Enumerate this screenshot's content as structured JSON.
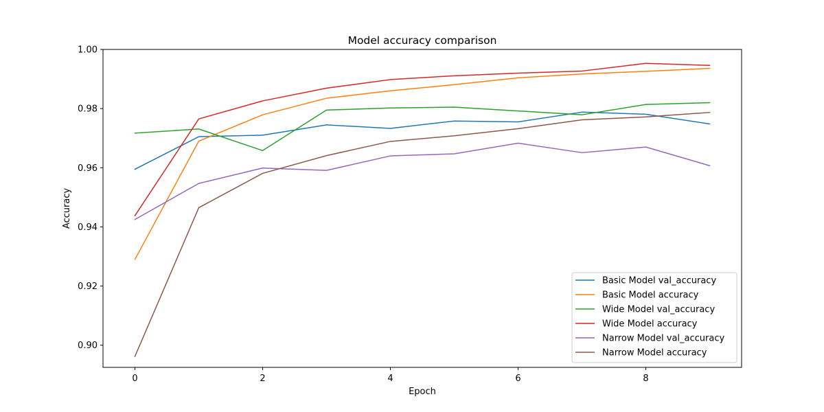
{
  "chart_data": {
    "type": "line",
    "title": "Model accuracy comparison",
    "xlabel": "Epoch",
    "ylabel": "Accuracy",
    "xlim": [
      -0.5,
      9.5
    ],
    "ylim": [
      0.8925,
      1.0
    ],
    "xticks": [
      0,
      2,
      4,
      6,
      8
    ],
    "xtick_labels": [
      "0",
      "2",
      "4",
      "6",
      "8"
    ],
    "yticks": [
      0.9,
      0.92,
      0.94,
      0.96,
      0.98,
      1.0
    ],
    "ytick_labels": [
      "0.90",
      "0.92",
      "0.94",
      "0.96",
      "0.98",
      "1.00"
    ],
    "grid": false,
    "legend_position": "lower-right",
    "x": [
      0,
      1,
      2,
      3,
      4,
      5,
      6,
      7,
      8,
      9
    ],
    "series": [
      {
        "name": "Basic Model val_accuracy",
        "color": "#1f77b4",
        "values": [
          0.9595,
          0.9705,
          0.971,
          0.9745,
          0.9733,
          0.9758,
          0.9755,
          0.9788,
          0.9781,
          0.9748
        ]
      },
      {
        "name": "Basic Model accuracy",
        "color": "#ff7f0e",
        "values": [
          0.929,
          0.969,
          0.9779,
          0.9835,
          0.986,
          0.9881,
          0.9904,
          0.9917,
          0.9926,
          0.9936
        ]
      },
      {
        "name": "Wide Model val_accuracy",
        "color": "#2ca02c",
        "values": [
          0.9717,
          0.9731,
          0.9658,
          0.9795,
          0.9802,
          0.9805,
          0.9792,
          0.9779,
          0.9814,
          0.982
        ]
      },
      {
        "name": "Wide Model accuracy",
        "color": "#d62728",
        "values": [
          0.9438,
          0.9765,
          0.9826,
          0.9869,
          0.9898,
          0.9911,
          0.992,
          0.9927,
          0.9953,
          0.9946
        ]
      },
      {
        "name": "Narrow Model val_accuracy",
        "color": "#9467bd",
        "values": [
          0.9425,
          0.9547,
          0.9599,
          0.9591,
          0.964,
          0.9647,
          0.9683,
          0.9651,
          0.967,
          0.9607
        ]
      },
      {
        "name": "Narrow Model accuracy",
        "color": "#8c564b",
        "values": [
          0.8962,
          0.9465,
          0.9581,
          0.9641,
          0.9689,
          0.9708,
          0.9732,
          0.9762,
          0.9772,
          0.9787
        ]
      }
    ]
  }
}
